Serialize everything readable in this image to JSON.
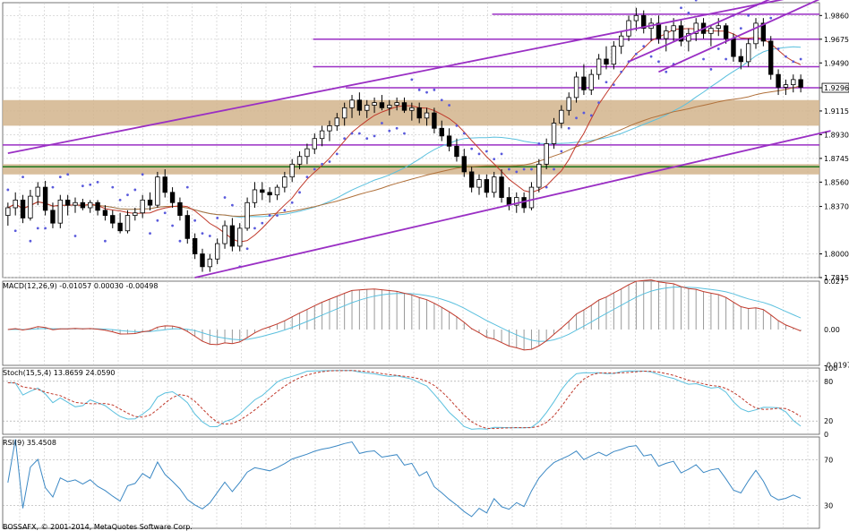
{
  "chart_data": [
    {
      "type": "candlestick",
      "panel": "price",
      "price_axis_ticks": [
        "1.9860",
        "1.9675",
        "1.9490",
        "1.9296",
        "1.9115",
        "1.8930",
        "1.8745",
        "1.8560",
        "1.8370",
        "1.8000",
        "1.7815"
      ],
      "ylim": [
        1.7815,
        1.996
      ],
      "last_price_label": "1.9296",
      "candles": [
        [
          1.83,
          1.84,
          1.822,
          1.836
        ],
        [
          1.836,
          1.848,
          1.83,
          1.842
        ],
        [
          1.842,
          1.846,
          1.824,
          1.828
        ],
        [
          1.828,
          1.85,
          1.826,
          1.845
        ],
        [
          1.845,
          1.856,
          1.838,
          1.852
        ],
        [
          1.852,
          1.857,
          1.83,
          1.834
        ],
        [
          1.834,
          1.84,
          1.82,
          1.824
        ],
        [
          1.824,
          1.846,
          1.82,
          1.842
        ],
        [
          1.842,
          1.846,
          1.83,
          1.838
        ],
        [
          1.838,
          1.844,
          1.832,
          1.84
        ],
        [
          1.84,
          1.843,
          1.834,
          1.836
        ],
        [
          1.836,
          1.842,
          1.832,
          1.84
        ],
        [
          1.84,
          1.842,
          1.83,
          1.834
        ],
        [
          1.834,
          1.838,
          1.826,
          1.83
        ],
        [
          1.83,
          1.834,
          1.82,
          1.824
        ],
        [
          1.824,
          1.832,
          1.816,
          1.818
        ],
        [
          1.818,
          1.834,
          1.816,
          1.83
        ],
        [
          1.83,
          1.836,
          1.826,
          1.832
        ],
        [
          1.832,
          1.846,
          1.828,
          1.842
        ],
        [
          1.842,
          1.848,
          1.834,
          1.838
        ],
        [
          1.838,
          1.864,
          1.836,
          1.86
        ],
        [
          1.86,
          1.866,
          1.844,
          1.848
        ],
        [
          1.848,
          1.852,
          1.836,
          1.84
        ],
        [
          1.84,
          1.844,
          1.826,
          1.83
        ],
        [
          1.83,
          1.834,
          1.808,
          1.812
        ],
        [
          1.812,
          1.816,
          1.796,
          1.8
        ],
        [
          1.8,
          1.804,
          1.786,
          1.79
        ],
        [
          1.79,
          1.8,
          1.786,
          1.796
        ],
        [
          1.796,
          1.812,
          1.792,
          1.808
        ],
        [
          1.808,
          1.826,
          1.804,
          1.822
        ],
        [
          1.822,
          1.828,
          1.802,
          1.806
        ],
        [
          1.806,
          1.824,
          1.802,
          1.82
        ],
        [
          1.82,
          1.844,
          1.818,
          1.84
        ],
        [
          1.84,
          1.856,
          1.836,
          1.85
        ],
        [
          1.85,
          1.856,
          1.842,
          1.848
        ],
        [
          1.848,
          1.852,
          1.84,
          1.846
        ],
        [
          1.846,
          1.854,
          1.842,
          1.852
        ],
        [
          1.852,
          1.864,
          1.848,
          1.86
        ],
        [
          1.86,
          1.874,
          1.856,
          1.87
        ],
        [
          1.87,
          1.88,
          1.866,
          1.876
        ],
        [
          1.876,
          1.886,
          1.87,
          1.882
        ],
        [
          1.882,
          1.894,
          1.878,
          1.89
        ],
        [
          1.89,
          1.9,
          1.884,
          1.896
        ],
        [
          1.896,
          1.904,
          1.888,
          1.9
        ],
        [
          1.9,
          1.91,
          1.896,
          1.906
        ],
        [
          1.906,
          1.918,
          1.9,
          1.914
        ],
        [
          1.914,
          1.924,
          1.906,
          1.92
        ],
        [
          1.92,
          1.926,
          1.908,
          1.912
        ],
        [
          1.912,
          1.92,
          1.906,
          1.916
        ],
        [
          1.916,
          1.922,
          1.91,
          1.918
        ],
        [
          1.918,
          1.924,
          1.912,
          1.914
        ],
        [
          1.914,
          1.92,
          1.908,
          1.916
        ],
        [
          1.916,
          1.922,
          1.912,
          1.918
        ],
        [
          1.918,
          1.922,
          1.91,
          1.912
        ],
        [
          1.912,
          1.918,
          1.904,
          1.914
        ],
        [
          1.914,
          1.918,
          1.902,
          1.906
        ],
        [
          1.906,
          1.914,
          1.9,
          1.91
        ],
        [
          1.91,
          1.914,
          1.894,
          1.898
        ],
        [
          1.898,
          1.904,
          1.888,
          1.892
        ],
        [
          1.892,
          1.898,
          1.88,
          1.884
        ],
        [
          1.884,
          1.89,
          1.872,
          1.876
        ],
        [
          1.876,
          1.882,
          1.86,
          1.864
        ],
        [
          1.864,
          1.868,
          1.848,
          1.852
        ],
        [
          1.852,
          1.862,
          1.846,
          1.858
        ],
        [
          1.858,
          1.862,
          1.844,
          1.848
        ],
        [
          1.848,
          1.864,
          1.844,
          1.86
        ],
        [
          1.86,
          1.866,
          1.84,
          1.844
        ],
        [
          1.844,
          1.852,
          1.834,
          1.838
        ],
        [
          1.838,
          1.848,
          1.832,
          1.844
        ],
        [
          1.844,
          1.848,
          1.832,
          1.836
        ],
        [
          1.836,
          1.856,
          1.834,
          1.852
        ],
        [
          1.852,
          1.874,
          1.848,
          1.87
        ],
        [
          1.87,
          1.89,
          1.866,
          1.886
        ],
        [
          1.886,
          1.906,
          1.882,
          1.902
        ],
        [
          1.902,
          1.916,
          1.898,
          1.912
        ],
        [
          1.912,
          1.926,
          1.908,
          1.922
        ],
        [
          1.922,
          1.942,
          1.918,
          1.938
        ],
        [
          1.938,
          1.948,
          1.924,
          1.928
        ],
        [
          1.928,
          1.944,
          1.924,
          1.94
        ],
        [
          1.94,
          1.956,
          1.936,
          1.952
        ],
        [
          1.952,
          1.962,
          1.944,
          1.948
        ],
        [
          1.948,
          1.966,
          1.944,
          1.962
        ],
        [
          1.962,
          1.974,
          1.956,
          1.97
        ],
        [
          1.97,
          1.986,
          1.966,
          1.982
        ],
        [
          1.982,
          1.992,
          1.974,
          1.986
        ],
        [
          1.986,
          1.99,
          1.972,
          1.976
        ],
        [
          1.976,
          1.984,
          1.966,
          1.98
        ],
        [
          1.98,
          1.986,
          1.964,
          1.968
        ],
        [
          1.968,
          1.978,
          1.958,
          1.974
        ],
        [
          1.974,
          1.984,
          1.966,
          1.978
        ],
        [
          1.978,
          1.982,
          1.962,
          1.966
        ],
        [
          1.966,
          1.976,
          1.958,
          1.972
        ],
        [
          1.972,
          1.984,
          1.966,
          1.98
        ],
        [
          1.98,
          1.984,
          1.968,
          1.972
        ],
        [
          1.972,
          1.978,
          1.962,
          1.976
        ],
        [
          1.976,
          1.984,
          1.97,
          1.978
        ],
        [
          1.978,
          1.98,
          1.964,
          1.968
        ],
        [
          1.968,
          1.972,
          1.95,
          1.954
        ],
        [
          1.954,
          1.96,
          1.944,
          1.95
        ],
        [
          1.95,
          1.968,
          1.946,
          1.964
        ],
        [
          1.964,
          1.984,
          1.96,
          1.98
        ],
        [
          1.98,
          1.984,
          1.962,
          1.966
        ],
        [
          1.966,
          1.97,
          1.936,
          1.94
        ],
        [
          1.94,
          1.944,
          1.924,
          1.93
        ],
        [
          1.93,
          1.936,
          1.924,
          1.932
        ],
        [
          1.932,
          1.94,
          1.926,
          1.936
        ],
        [
          1.936,
          1.94,
          1.926,
          1.93
        ]
      ],
      "horizontal_lines": [
        {
          "price": 1.987,
          "color": "#9a2fc4"
        },
        {
          "price": 1.9675,
          "color": "#9a2fc4"
        },
        {
          "price": 1.946,
          "color": "#9a2fc4"
        },
        {
          "price": 1.9296,
          "color": "#9a2fc4"
        },
        {
          "price": 1.885,
          "color": "#9a2fc4"
        },
        {
          "price": 1.868,
          "color": "#1f7a1f"
        }
      ],
      "zones": [
        {
          "from": 1.9,
          "to": 1.92,
          "color": "#d2b48c"
        },
        {
          "from": 1.862,
          "to": 1.87,
          "color": "#d2b48c"
        }
      ],
      "trend_lines": [
        {
          "from": [
            0,
            1.8785
          ],
          "to": [
            104,
            1.999
          ],
          "color": "#9a2fc4"
        },
        {
          "from": [
            25,
            1.7815
          ],
          "to": [
            110,
            1.896
          ],
          "color": "#9a2fc4"
        },
        {
          "from": [
            87,
            1.942
          ],
          "to": [
            109,
            2.0
          ],
          "color": "#9a2fc4"
        },
        {
          "from": [
            83,
            1.95
          ],
          "to": [
            102,
            1.999
          ],
          "color": "#9a2fc4"
        }
      ],
      "colors": {
        "up": "#ffffff",
        "down": "#000000",
        "ma_fast": "#c0392b",
        "ma_mid": "#5bc0de",
        "ma_slow": "#b0703a",
        "sar": "#5a5adc"
      }
    },
    {
      "type": "macd",
      "panel": "macd",
      "label": "MACD(12,26,9) -0.01057 0.00030 -0.00498",
      "ticks": [
        "0.027",
        "0.00",
        "-0.01977"
      ],
      "ylim": [
        -0.02,
        0.027
      ],
      "colors": {
        "hist": "#999999",
        "macd": "#c0392b",
        "signal": "#5bc0de"
      }
    },
    {
      "type": "stochastic",
      "panel": "stoch",
      "label": "Stoch(15,5,4) 13.8659 24.0590",
      "ticks": [
        "100",
        "80",
        "20",
        "0"
      ],
      "ylim": [
        0,
        100
      ],
      "colors": {
        "main": "#5bc0de",
        "signal": "#c0392b"
      }
    },
    {
      "type": "line",
      "panel": "rsi",
      "label": "RSI(9) 35.4508",
      "ticks": [
        "70",
        "30"
      ],
      "ylim": [
        10,
        90
      ],
      "colors": {
        "line": "#3b88c4"
      }
    }
  ],
  "footer": {
    "text": "BOSSAFX, © 2001-2014, MetaQuotes Software Corp."
  }
}
